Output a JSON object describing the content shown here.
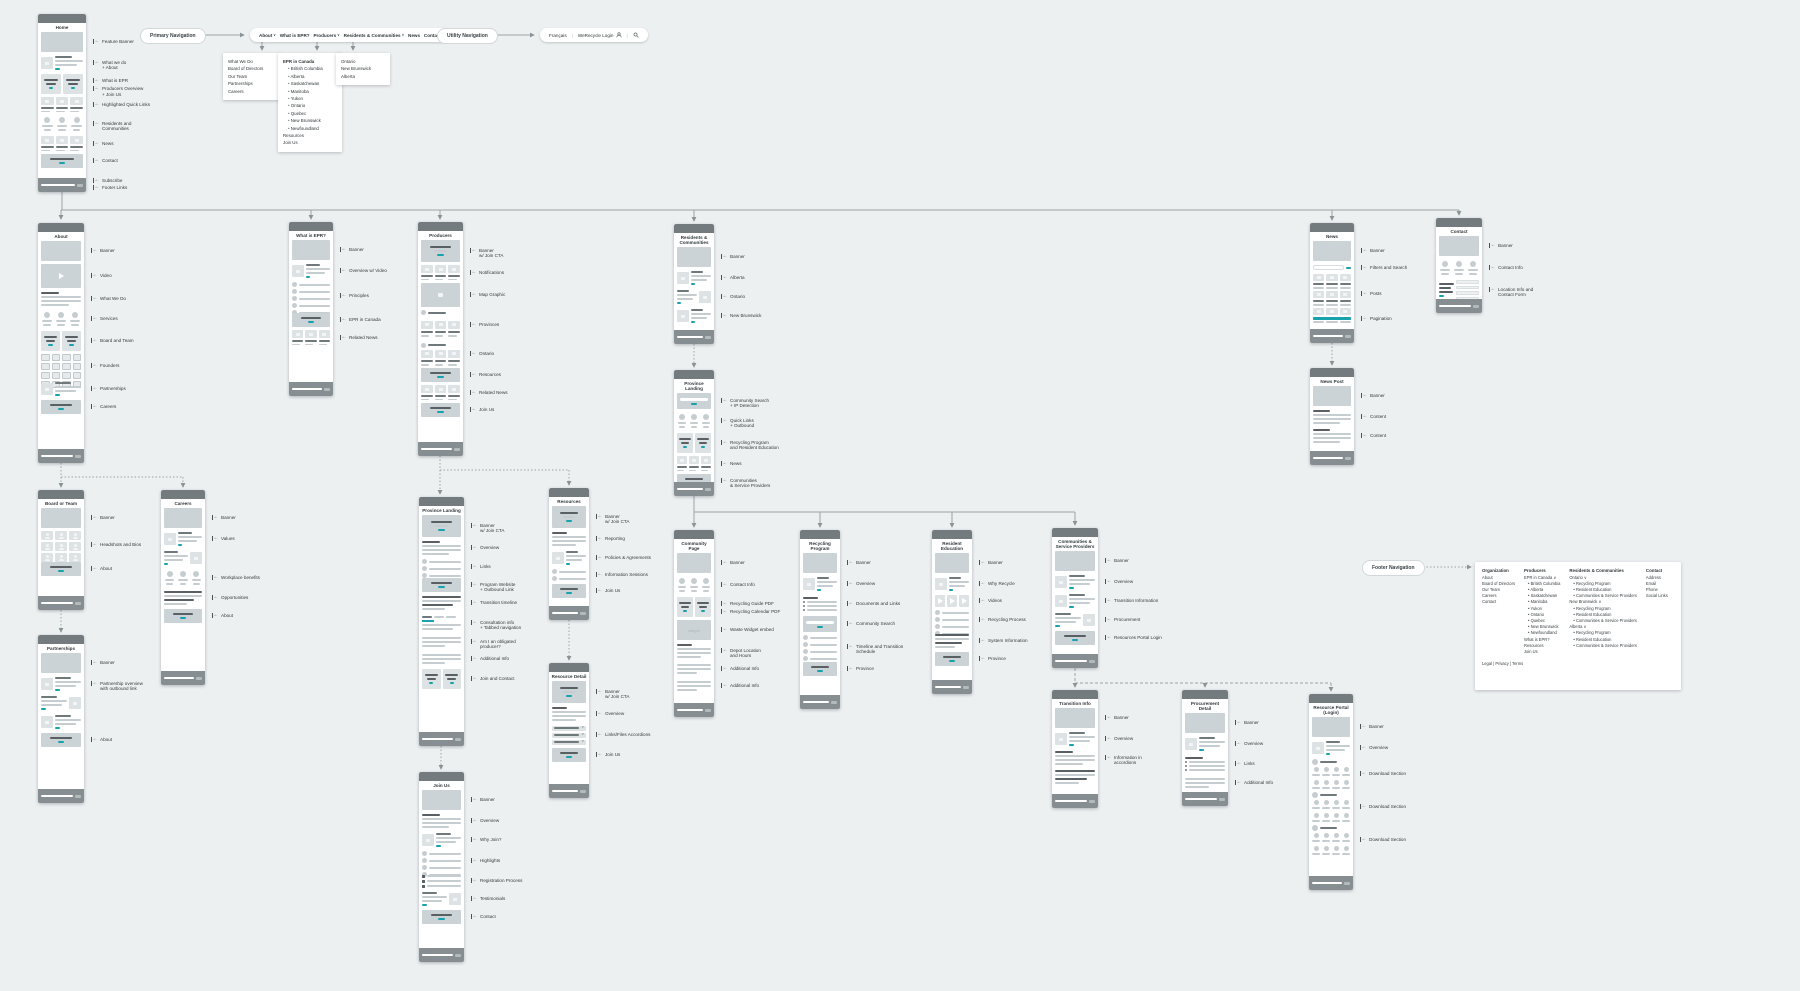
{
  "app": {
    "background": "#edf0f1",
    "accent_teal": "#18a2ad",
    "card_header_gray": "#747b7e",
    "card_footer_gray": "#878e91",
    "connector_gray": "#9ba4a6"
  },
  "pills": {
    "primary": "Primary Navigation",
    "utility": "Utility Navigation",
    "footer": "Footer Navigation"
  },
  "primary_nav": {
    "items": [
      {
        "label": "About",
        "has_dropdown": true
      },
      {
        "label": "What is EPR?",
        "has_dropdown": false
      },
      {
        "label": "Producers",
        "has_dropdown": true
      },
      {
        "label": "Residents & Communities",
        "has_dropdown": true
      },
      {
        "label": "News",
        "has_dropdown": false
      },
      {
        "label": "Contact",
        "has_dropdown": false
      }
    ]
  },
  "utility_nav": {
    "items": [
      {
        "label": "Français"
      },
      {
        "label": "WeRecycle Login",
        "icon": "user-icon"
      },
      {
        "label": "",
        "icon": "search-icon"
      }
    ]
  },
  "dropdowns": {
    "about": [
      "What We Do",
      "Board of Directors",
      "Our Team",
      "Partnerships",
      "Careers"
    ],
    "producers": {
      "heading": "EPR in Canada",
      "provinces": [
        "British Columbia",
        "Alberta",
        "Saskatchewan",
        "Manitoba",
        "Yukon",
        "Ontario",
        "Quebec",
        "New Brunswick",
        "Newfoundland"
      ],
      "items": [
        "Resources",
        "Join Us"
      ]
    },
    "residents": [
      "Ontario",
      "New Brunswick",
      "Alberta"
    ]
  },
  "pages": [
    {
      "id": "home",
      "title": "Home",
      "sections": [
        {
          "kind": "banner",
          "label": "Feature Banner"
        },
        {
          "kind": "media-row",
          "label": "What we do\n+ About"
        },
        {
          "kind": "dark-tiles",
          "label": "What is EPR",
          "label2": "Producers Overview\n+ Join Us"
        },
        {
          "kind": "tiles-3",
          "label": "Highlighted Quick Links"
        },
        {
          "kind": "icon-cols",
          "label": "Residents and\nCommunities"
        },
        {
          "kind": "tiles-3",
          "label": "News"
        },
        {
          "kind": "cta",
          "label": "Contact"
        }
      ],
      "footer_labels": [
        "Subscribe",
        "Footer Links"
      ]
    },
    {
      "id": "about",
      "title": "About",
      "sections": [
        {
          "kind": "banner",
          "label": "Banner"
        },
        {
          "kind": "video",
          "label": "Video"
        },
        {
          "kind": "heading-rows",
          "label": "What We Do"
        },
        {
          "kind": "icon-cols",
          "label": "Services"
        },
        {
          "kind": "dark-tiles",
          "label": "Board and Team"
        },
        {
          "kind": "checker",
          "label": "Founders"
        },
        {
          "kind": "media-row",
          "label": "Partnerships"
        },
        {
          "kind": "cta",
          "label": "Careers"
        }
      ]
    },
    {
      "id": "board",
      "title": "Board or Team",
      "sections": [
        {
          "kind": "banner",
          "label": "Banner"
        },
        {
          "kind": "people",
          "label": "Headshots and Bios"
        },
        {
          "kind": "cta",
          "label": "About"
        }
      ]
    },
    {
      "id": "partnerships",
      "title": "Partnerships",
      "sections": [
        {
          "kind": "banner",
          "label": "Banner"
        },
        {
          "kind": "media-row",
          "label": "Partnership overview\nwith outbound link"
        },
        {
          "kind": "media-row-flip",
          "label": ""
        },
        {
          "kind": "media-row",
          "label": ""
        },
        {
          "kind": "cta",
          "label": "About"
        }
      ]
    },
    {
      "id": "careers",
      "title": "Careers",
      "sections": [
        {
          "kind": "banner",
          "label": "Banner"
        },
        {
          "kind": "media-row",
          "label": "Values"
        },
        {
          "kind": "media-row-flip",
          "label": ""
        },
        {
          "kind": "icon-cols",
          "label": "Workplace benefits"
        },
        {
          "kind": "timeline",
          "label": "Opportunities"
        },
        {
          "kind": "cta",
          "label": "About"
        }
      ]
    },
    {
      "id": "epr",
      "title": "What is EPR?",
      "sections": [
        {
          "kind": "banner",
          "label": "Banner"
        },
        {
          "kind": "media-row",
          "label": "Overview w/ Video"
        },
        {
          "kind": "icon-list-6",
          "label": "Principles"
        },
        {
          "kind": "cta",
          "label": "EPR in Canada"
        },
        {
          "kind": "tiles-3",
          "label": "Related News"
        }
      ]
    },
    {
      "id": "producers",
      "title": "Producers",
      "sections": [
        {
          "kind": "banner-cta",
          "label": "Banner\nw/ Join CTA"
        },
        {
          "kind": "tiles-3",
          "label": "Notifications"
        },
        {
          "kind": "map",
          "label": "Map Graphic"
        },
        {
          "kind": "avatar-tiles",
          "label": "Provinces"
        },
        {
          "kind": "avatar-tiles2",
          "label": "Ontario"
        },
        {
          "kind": "cta",
          "label": "Resources"
        },
        {
          "kind": "tiles-3",
          "label": "Related News"
        },
        {
          "kind": "cta",
          "label": "Join Us"
        }
      ]
    },
    {
      "id": "plp",
      "title": "Province Landing",
      "sections": [
        {
          "kind": "banner-cta",
          "label": "Banner\nw/ Join CTA"
        },
        {
          "kind": "heading-rows",
          "label": "Overview"
        },
        {
          "kind": "icon-list-3",
          "label": "Links"
        },
        {
          "kind": "cta",
          "label": "Program Website\n+ Outbound Link"
        },
        {
          "kind": "timeline",
          "label": "Transition timeline"
        },
        {
          "kind": "tabs",
          "label": "Consultation info\n+ Tabbed navigation"
        },
        {
          "kind": "text-rows",
          "label": "Am I an obligated\nproducer?"
        },
        {
          "kind": "text-rows",
          "label": "Additional Info"
        },
        {
          "kind": "dark-tiles",
          "label": "Join and Contact"
        }
      ]
    },
    {
      "id": "resources",
      "title": "Resources",
      "sections": [
        {
          "kind": "banner-cta",
          "label": "Banner\nw/ Join CTA"
        },
        {
          "kind": "heading-rows",
          "label": "Reporting"
        },
        {
          "kind": "media-row",
          "label": "Policies & Agreements"
        },
        {
          "kind": "icon-list-2",
          "label": "Information Sessions"
        },
        {
          "kind": "cta",
          "label": "Join Us"
        }
      ]
    },
    {
      "id": "resdetail",
      "title": "Resource Detail",
      "sections": [
        {
          "kind": "banner-cta",
          "label": "Banner\nw/ Join CTA"
        },
        {
          "kind": "heading-rows",
          "label": "Overview"
        },
        {
          "kind": "accordion",
          "label": "Links/Files Accordions"
        },
        {
          "kind": "cta",
          "label": "Join Us"
        }
      ]
    },
    {
      "id": "joinus",
      "title": "Join Us",
      "sections": [
        {
          "kind": "banner",
          "label": "Banner"
        },
        {
          "kind": "heading-rows",
          "label": "Overview"
        },
        {
          "kind": "media-row",
          "label": "Why Join?"
        },
        {
          "kind": "icon-list-4",
          "label": "Highlights"
        },
        {
          "kind": "numbered",
          "label": "Registration Process"
        },
        {
          "kind": "media-row-flip",
          "label": "Testimonials"
        },
        {
          "kind": "cta",
          "label": "Contact"
        }
      ]
    },
    {
      "id": "rescomm",
      "title": "Residents & Communities",
      "sections": [
        {
          "kind": "banner",
          "label": "Banner"
        },
        {
          "kind": "media-row",
          "label": "Alberta"
        },
        {
          "kind": "media-row-flip",
          "label": "Ontario"
        },
        {
          "kind": "media-row",
          "label": "New Brunswick"
        }
      ]
    },
    {
      "id": "plrc",
      "title": "Province Landing",
      "sections": [
        {
          "kind": "search-band",
          "label": "Community Search\n+ IP Detection"
        },
        {
          "kind": "icon-cols",
          "label": "Quick Links\n+ Outbound"
        },
        {
          "kind": "dark-tiles",
          "label": "Recycling Program\nand Resident Education"
        },
        {
          "kind": "tiles-3",
          "label": "News"
        },
        {
          "kind": "cta",
          "label": "Communities\n& Service Providers"
        }
      ]
    },
    {
      "id": "community",
      "title": "Community Page",
      "sections": [
        {
          "kind": "banner",
          "label": "Banner"
        },
        {
          "kind": "icon-cols",
          "label": "Contact Info"
        },
        {
          "kind": "dark-tiles",
          "label": "Recycling Guide PDF",
          "label2": "Recycling Calendar PDF"
        },
        {
          "kind": "widget",
          "label": "Waste Widget embed"
        },
        {
          "kind": "heading-rows",
          "label": "Depot Location\nand Hours"
        },
        {
          "kind": "text-rows",
          "label": "Additional Info"
        },
        {
          "kind": "text-rows",
          "label": "Additional Info"
        }
      ]
    },
    {
      "id": "recprog",
      "title": "Recycling Program",
      "sections": [
        {
          "kind": "banner",
          "label": "Banner"
        },
        {
          "kind": "media-row",
          "label": "Overview"
        },
        {
          "kind": "doc-list",
          "label": "Documents and Links"
        },
        {
          "kind": "search-band",
          "label": "Community Search"
        },
        {
          "kind": "icon-list-5",
          "label": "Timeline and Transition\nSchedule"
        },
        {
          "kind": "cta",
          "label": "Province"
        }
      ]
    },
    {
      "id": "resedu",
      "title": "Resident Education",
      "sections": [
        {
          "kind": "banner",
          "label": "Banner"
        },
        {
          "kind": "media-row",
          "label": "Why Recycle"
        },
        {
          "kind": "video-tiles",
          "label": "Videos"
        },
        {
          "kind": "icon-list-4",
          "label": "Recycling Process"
        },
        {
          "kind": "timeline",
          "label": "System Information"
        },
        {
          "kind": "cta",
          "label": "Province"
        }
      ]
    },
    {
      "id": "csp",
      "title": "Communities & Service Providers",
      "sections": [
        {
          "kind": "banner",
          "label": "Banner"
        },
        {
          "kind": "media-row",
          "label": "Overview"
        },
        {
          "kind": "media-row",
          "label": "Transition Information"
        },
        {
          "kind": "media-row-flip",
          "label": "Procurement"
        },
        {
          "kind": "cta",
          "label": "Resources Portal Login"
        }
      ]
    },
    {
      "id": "transinfo",
      "title": "Transition Info",
      "sections": [
        {
          "kind": "banner",
          "label": "Banner"
        },
        {
          "kind": "media-row",
          "label": "Overview"
        },
        {
          "kind": "heading-rows",
          "label": "Information in\naccordions"
        },
        {
          "kind": "timeline",
          "label": ""
        }
      ]
    },
    {
      "id": "procdetail",
      "title": "Procurement Detail",
      "sections": [
        {
          "kind": "banner",
          "label": "Banner"
        },
        {
          "kind": "media-row",
          "label": "Overview"
        },
        {
          "kind": "doc-list",
          "label": "Links"
        },
        {
          "kind": "text-rows",
          "label": "Additional Info"
        }
      ]
    },
    {
      "id": "resportal",
      "title": "Resource Portal (Login)",
      "sections": [
        {
          "kind": "banner",
          "label": "Banner"
        },
        {
          "kind": "media-row",
          "label": "Overview"
        },
        {
          "kind": "download",
          "label": "Download Section"
        },
        {
          "kind": "download",
          "label": "Download Section"
        },
        {
          "kind": "download",
          "label": "Download Section"
        }
      ]
    },
    {
      "id": "news",
      "title": "News",
      "sections": [
        {
          "kind": "banner",
          "label": "Banner"
        },
        {
          "kind": "search-row",
          "label": "Filters and Search"
        },
        {
          "kind": "news-grid",
          "label": "Posts"
        },
        {
          "kind": "pagination",
          "label": "Pagination"
        }
      ]
    },
    {
      "id": "newspost",
      "title": "News Post",
      "sections": [
        {
          "kind": "banner",
          "label": "Banner"
        },
        {
          "kind": "heading-rows",
          "label": "Content"
        },
        {
          "kind": "heading-rows",
          "label": "Content"
        }
      ]
    },
    {
      "id": "contact",
      "title": "Contact",
      "sections": [
        {
          "kind": "banner",
          "label": "Banner"
        },
        {
          "kind": "icon-cols",
          "label": "Contact Info"
        },
        {
          "kind": "form",
          "label": "Location Info and\nContact Form"
        }
      ]
    }
  ],
  "footer_sitemap": {
    "columns": [
      {
        "heading": "Organization",
        "items": [
          "About",
          "Board of Directors",
          "Our Team",
          "Careers",
          "Contact"
        ]
      },
      {
        "heading": "Producers",
        "items": [
          "EPR in Canada ∨",
          "• British Columbia",
          "• Alberta",
          "• Saskatchewan",
          "• Manitoba",
          "• Yukon",
          "• Ontario",
          "• Quebec",
          "• New Brunswick",
          "• Newfoundland",
          "What is EPR?",
          "Resources",
          "Join Us"
        ]
      },
      {
        "heading": "Residents & Communities",
        "items": [
          "Ontario ∨",
          "• Recycling Program",
          "• Resident Education",
          "• Communities & Service Providers",
          "New Brunswick ∨",
          "• Recycling Program",
          "• Resident Education",
          "• Communities & Service Providers",
          "Alberta ∨",
          "• Recycling Program",
          "• Resident Education",
          "• Communities & Service Providers"
        ]
      },
      {
        "heading": "Contact",
        "items": [
          "Address",
          "Email",
          "Phone",
          "Social Links"
        ]
      }
    ],
    "legal": "Legal  |  Privacy  |  Terms"
  }
}
